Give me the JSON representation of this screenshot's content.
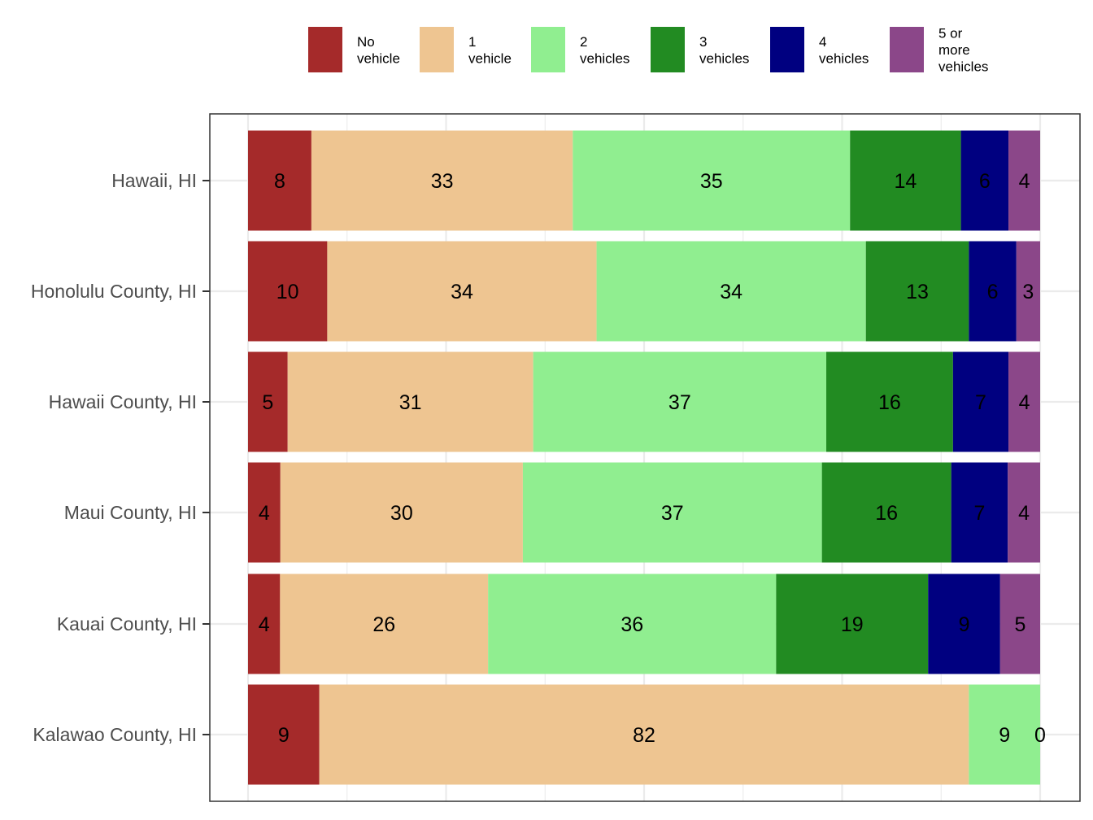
{
  "chart_data": {
    "type": "bar",
    "orientation": "horizontal",
    "stacked": true,
    "title": "",
    "xlabel": "",
    "ylabel": "",
    "xlim": [
      0,
      100
    ],
    "grid": true,
    "legend_position": "top",
    "categories": [
      "Hawaii, HI",
      "Honolulu County, HI",
      "Hawaii County, HI",
      "Maui County, HI",
      "Kauai County, HI",
      "Kalawao County, HI"
    ],
    "series": [
      {
        "name": "No vehicle",
        "legend_lines": [
          "No",
          "vehicle"
        ],
        "color": "#a52a2a",
        "values": [
          8,
          10,
          5,
          4,
          4,
          9
        ]
      },
      {
        "name": "1 vehicle",
        "legend_lines": [
          "1",
          "vehicle"
        ],
        "color": "#eec591",
        "values": [
          33,
          34,
          31,
          30,
          26,
          82
        ]
      },
      {
        "name": "2 vehicles",
        "legend_lines": [
          "2",
          "vehicles"
        ],
        "color": "#90ee90",
        "values": [
          35,
          34,
          37,
          37,
          36,
          9
        ]
      },
      {
        "name": "3 vehicles",
        "legend_lines": [
          "3",
          "vehicles"
        ],
        "color": "#228b22",
        "values": [
          14,
          13,
          16,
          16,
          19,
          0
        ]
      },
      {
        "name": "4 vehicles",
        "legend_lines": [
          "4",
          "vehicles"
        ],
        "color": "#000080",
        "values": [
          6,
          6,
          7,
          7,
          9,
          0
        ]
      },
      {
        "name": "5 or more vehicles",
        "legend_lines": [
          "5 or",
          "more",
          "vehicles"
        ],
        "color": "#8b4789",
        "values": [
          4,
          3,
          4,
          4,
          5,
          0
        ]
      }
    ],
    "labels": [
      [
        "8",
        "33",
        "35",
        "14",
        "6",
        "4"
      ],
      [
        "10",
        "34",
        "34",
        "13",
        "6",
        "3"
      ],
      [
        "5",
        "31",
        "37",
        "16",
        "7",
        "4"
      ],
      [
        "4",
        "30",
        "37",
        "16",
        "7",
        "4"
      ],
      [
        "4",
        "26",
        "36",
        "19",
        "9",
        "5"
      ],
      [
        "9",
        "82",
        "9",
        "0"
      ]
    ]
  }
}
